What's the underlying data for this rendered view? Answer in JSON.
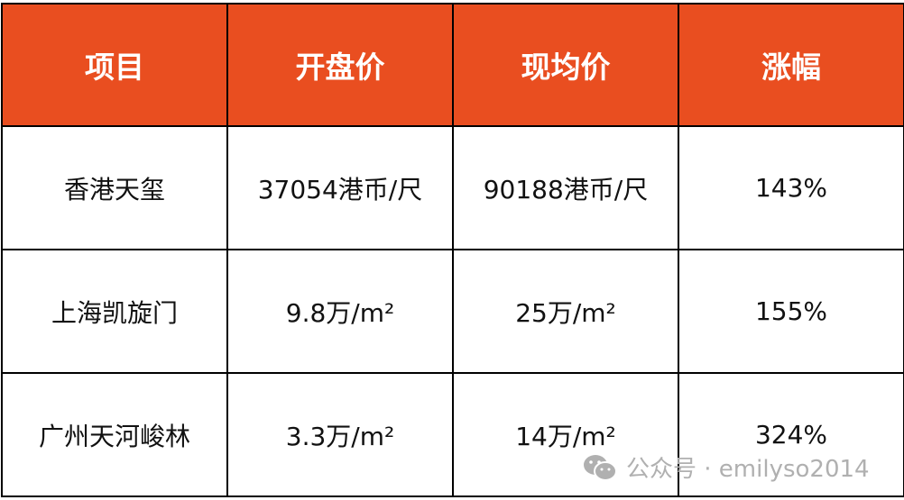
{
  "colors": {
    "header_bg": "#E94E20",
    "header_text": "#FFFFFF",
    "border": "#000000"
  },
  "table": {
    "headers": [
      "项目",
      "开盘价",
      "现均价",
      "涨幅"
    ],
    "rows": [
      [
        "香港天玺",
        "37054港币/尺",
        "90188港币/尺",
        "143%"
      ],
      [
        "上海凯旋门",
        "9.8万/m²",
        "25万/m²",
        "155%"
      ],
      [
        "广州天河峻林",
        "3.3万/m²",
        "14万/m²",
        "324%"
      ]
    ]
  },
  "watermark": {
    "icon": "wechat-icon",
    "text": "公众号 · emilyso2014"
  }
}
